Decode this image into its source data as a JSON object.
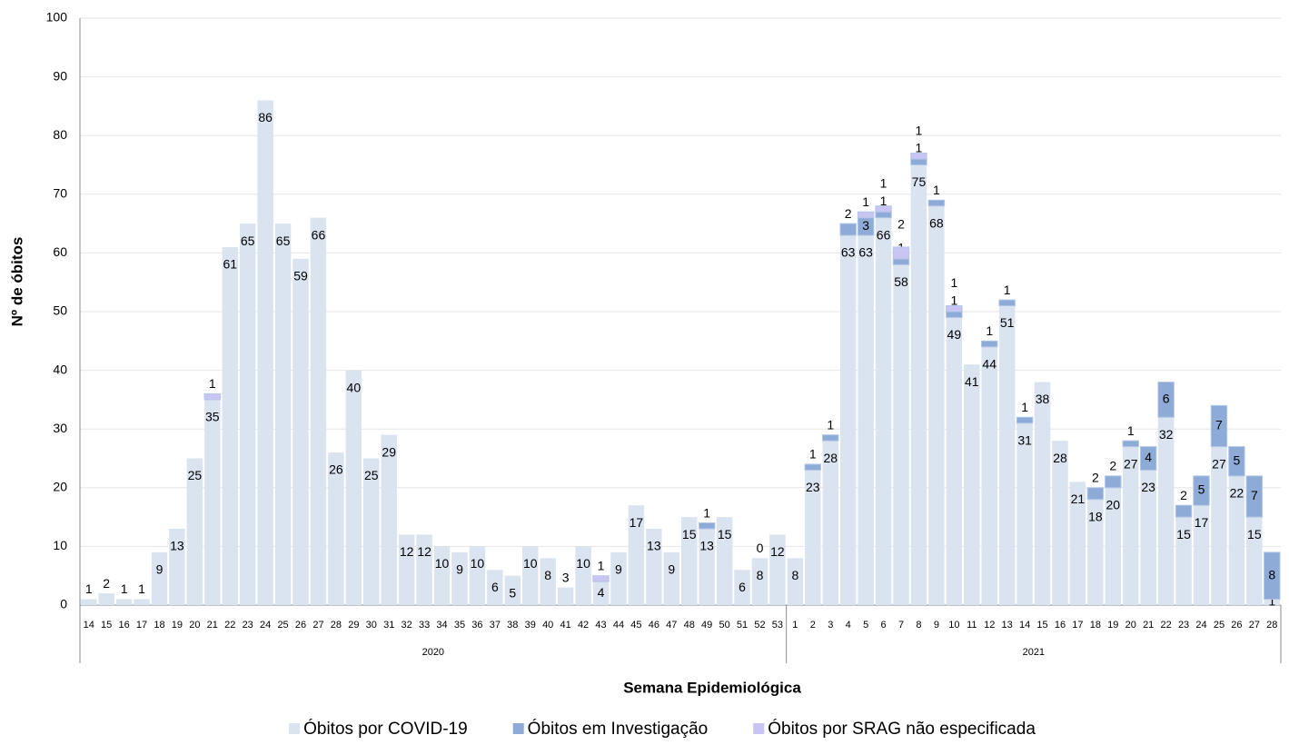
{
  "chart_data": {
    "type": "stacked-bar",
    "x_label": "Semana Epidemiológica",
    "y_label": "Nº de óbitos",
    "categories": [
      "14",
      "15",
      "16",
      "17",
      "18",
      "19",
      "20",
      "21",
      "22",
      "23",
      "24",
      "25",
      "26",
      "27",
      "28",
      "29",
      "30",
      "31",
      "32",
      "33",
      "34",
      "35",
      "36",
      "37",
      "38",
      "39",
      "40",
      "41",
      "42",
      "43",
      "44",
      "45",
      "46",
      "47",
      "48",
      "49",
      "50",
      "51",
      "52",
      "53",
      "1",
      "2",
      "3",
      "4",
      "5",
      "6",
      "7",
      "8",
      "9",
      "10",
      "11",
      "12",
      "13",
      "14",
      "15",
      "16",
      "17",
      "18",
      "19",
      "20",
      "21",
      "22",
      "23",
      "24",
      "25",
      "26",
      "27",
      "28"
    ],
    "groups": [
      "2020",
      "2021"
    ],
    "series": [
      {
        "name": "Óbitos por COVID-19",
        "color": "#dae3f0",
        "values": [
          1,
          2,
          1,
          1,
          9,
          13,
          25,
          35,
          61,
          65,
          86,
          65,
          59,
          66,
          26,
          40,
          25,
          29,
          12,
          12,
          10,
          9,
          10,
          6,
          5,
          10,
          8,
          3,
          10,
          4,
          9,
          17,
          13,
          9,
          15,
          13,
          15,
          6,
          8,
          12,
          8,
          23,
          28,
          63,
          63,
          66,
          58,
          75,
          68,
          49,
          41,
          44,
          51,
          31,
          38,
          28,
          21,
          18,
          20,
          27,
          23,
          32,
          15,
          17,
          27,
          22,
          15,
          1
        ]
      },
      {
        "name": "Óbitos em Investigação",
        "color": "#8eaad6",
        "values": [
          null,
          null,
          null,
          null,
          null,
          null,
          null,
          null,
          null,
          null,
          null,
          null,
          null,
          null,
          null,
          null,
          null,
          null,
          null,
          null,
          null,
          null,
          null,
          null,
          null,
          null,
          null,
          null,
          null,
          null,
          null,
          null,
          null,
          null,
          null,
          1,
          null,
          null,
          0,
          null,
          null,
          1,
          1,
          2,
          3,
          1,
          1,
          1,
          1,
          1,
          null,
          1,
          1,
          1,
          null,
          null,
          null,
          2,
          2,
          1,
          4,
          6,
          2,
          5,
          7,
          5,
          7,
          8
        ]
      },
      {
        "name": "Óbitos por SRAG não especificada",
        "color": "#c8c4f4",
        "values": [
          null,
          null,
          null,
          null,
          null,
          null,
          null,
          1,
          null,
          null,
          null,
          null,
          null,
          null,
          null,
          null,
          null,
          null,
          null,
          null,
          null,
          null,
          null,
          null,
          null,
          null,
          null,
          null,
          null,
          1,
          null,
          null,
          null,
          null,
          null,
          null,
          null,
          null,
          null,
          null,
          null,
          null,
          null,
          null,
          1,
          1,
          2,
          1,
          null,
          1,
          null,
          null,
          null,
          null,
          null,
          null,
          null,
          null,
          null,
          null,
          null,
          null,
          null,
          null,
          null,
          null,
          null,
          null
        ]
      }
    ],
    "ylim": [
      0,
      100
    ],
    "yticks": [
      0,
      10,
      20,
      30,
      40,
      50,
      60,
      70,
      80,
      90,
      100
    ],
    "grid": true
  }
}
